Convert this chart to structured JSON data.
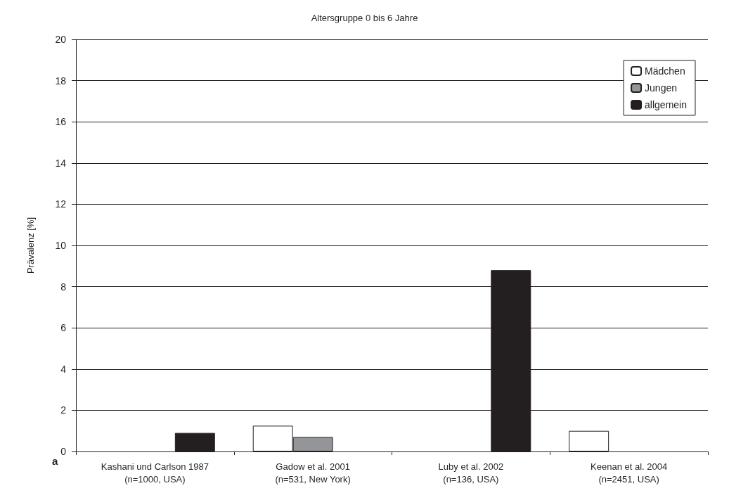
{
  "chart_data": {
    "type": "bar",
    "title": "Altersgruppe 0 bis 6 Jahre",
    "ylabel": "Prävalenz [%]",
    "categories": [
      "Kashani und Carlson 1987\n(n=1000, USA)",
      "Gadow et al. 2001\n(n=531, New York)",
      "Luby et al. 2002\n(n=136, USA)",
      "Keenan et al. 2004\n(n=2451, USA)"
    ],
    "series": [
      {
        "name": "Mädchen",
        "color": "#ffffff",
        "values": [
          null,
          1.25,
          null,
          1.0
        ]
      },
      {
        "name": "Jungen",
        "color": "#939598",
        "values": [
          null,
          0.7,
          null,
          null
        ]
      },
      {
        "name": "allgemein",
        "color": "#231f20",
        "values": [
          0.9,
          null,
          8.8,
          null
        ]
      }
    ],
    "ylim": [
      0,
      20
    ],
    "yticks": [
      0,
      2,
      4,
      6,
      8,
      10,
      12,
      14,
      16,
      18,
      20
    ],
    "grid": "y",
    "legend": "top right",
    "annotations": [
      "a"
    ]
  }
}
